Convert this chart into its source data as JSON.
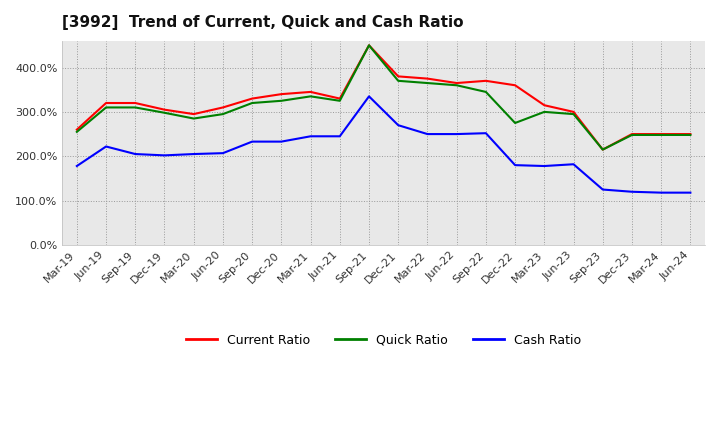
{
  "title": "[3992]  Trend of Current, Quick and Cash Ratio",
  "labels": [
    "Mar-19",
    "Jun-19",
    "Sep-19",
    "Dec-19",
    "Mar-20",
    "Jun-20",
    "Sep-20",
    "Dec-20",
    "Mar-21",
    "Jun-21",
    "Sep-21",
    "Dec-21",
    "Mar-22",
    "Jun-22",
    "Sep-22",
    "Dec-22",
    "Mar-23",
    "Jun-23",
    "Sep-23",
    "Dec-23",
    "Mar-24",
    "Jun-24"
  ],
  "current_ratio": [
    260,
    320,
    320,
    305,
    295,
    310,
    330,
    340,
    345,
    330,
    450,
    380,
    375,
    365,
    370,
    360,
    315,
    300,
    215,
    250,
    250,
    250
  ],
  "quick_ratio": [
    255,
    310,
    310,
    298,
    285,
    295,
    320,
    325,
    335,
    325,
    450,
    370,
    365,
    360,
    345,
    275,
    300,
    295,
    215,
    248,
    248,
    248
  ],
  "cash_ratio": [
    178,
    222,
    205,
    202,
    205,
    207,
    233,
    233,
    245,
    245,
    335,
    270,
    250,
    250,
    252,
    180,
    178,
    182,
    125,
    120,
    118,
    118
  ],
  "current_color": "#ff0000",
  "quick_color": "#008000",
  "cash_color": "#0000ff",
  "ylim": [
    0,
    460
  ],
  "yticks": [
    0,
    100,
    200,
    300,
    400
  ],
  "bg_color": "#e8e8e8",
  "grid_color": "#999999"
}
